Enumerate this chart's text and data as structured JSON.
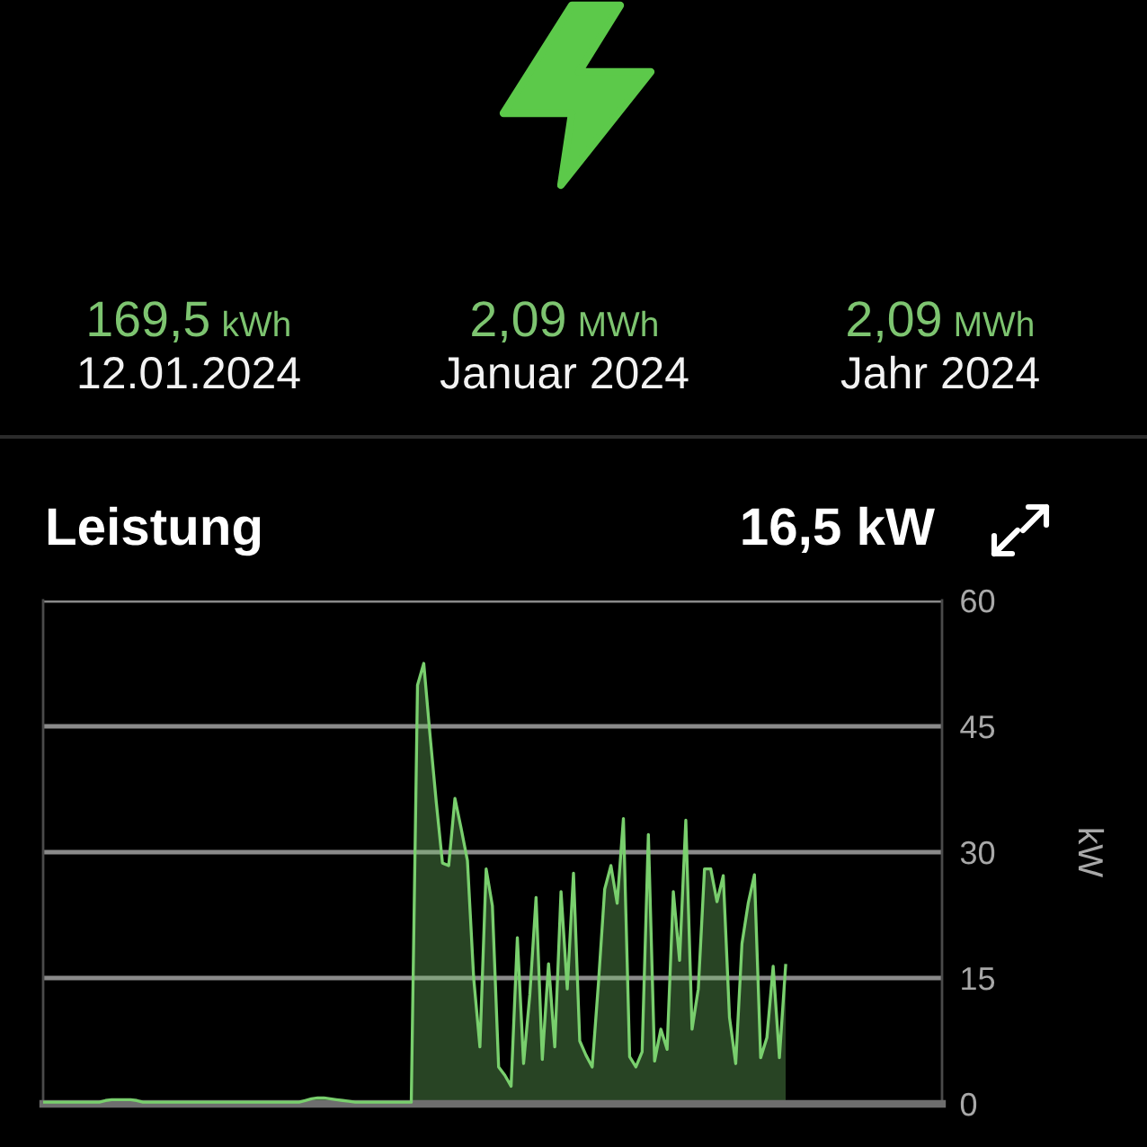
{
  "chart_data": {
    "type": "area",
    "title": "Leistung",
    "ylabel": "kW",
    "annotations": [
      "169,5 kWh",
      "12.01.2024",
      "2,09 MWh",
      "Januar 2024",
      "2,09 MWh",
      "Jahr 2024",
      "16,5 kW"
    ],
    "categories": [
      null,
      null,
      null,
      null,
      null,
      null,
      null,
      null,
      null,
      null,
      null,
      null,
      null,
      null,
      null,
      null,
      null,
      null,
      null,
      null,
      null,
      null,
      null,
      null,
      null,
      null,
      null,
      null,
      null,
      null,
      null,
      null,
      null,
      null,
      null,
      null,
      null,
      null,
      null,
      null,
      null,
      null,
      null,
      null,
      null,
      null,
      null,
      null,
      null,
      null,
      null,
      null,
      null,
      null,
      null,
      null,
      null,
      null,
      null,
      null,
      null,
      null,
      null,
      null,
      null,
      null,
      null,
      null,
      null,
      null,
      null,
      null,
      null,
      null,
      null,
      null,
      null,
      null,
      null,
      null,
      null,
      null,
      null,
      null,
      null,
      null,
      null,
      null,
      null,
      null,
      null,
      null,
      null,
      null,
      null,
      null,
      null,
      null,
      null,
      null,
      null,
      null,
      null,
      null,
      null,
      null,
      null,
      null,
      null,
      null,
      null,
      null,
      null,
      null,
      null,
      null,
      null,
      null,
      null,
      null
    ],
    "series": [
      {
        "color": "#79cf6d",
        "values": [
          0.2,
          0.2,
          0.2,
          0.2,
          0.2,
          0.2,
          0.2,
          0.2,
          0.2,
          0.2,
          0.4,
          0.5,
          0.5,
          0.5,
          0.5,
          0.4,
          0.2,
          0.2,
          0.2,
          0.2,
          0.2,
          0.2,
          0.2,
          0.2,
          0.2,
          0.2,
          0.2,
          0.2,
          0.2,
          0.2,
          0.2,
          0.2,
          0.2,
          0.2,
          0.2,
          0.2,
          0.2,
          0.2,
          0.2,
          0.2,
          0.2,
          0.2,
          0.4,
          0.6,
          0.7,
          0.7,
          0.6,
          0.5,
          0.4,
          0.3,
          0.2,
          0.2,
          0.2,
          0.2,
          0.2,
          0.2,
          0.2,
          0.2,
          0.2,
          0.2,
          49.9,
          52.5,
          44,
          36,
          28.7,
          28.4,
          36.4,
          32.8,
          29,
          15,
          6.8,
          28,
          23.6,
          4.4,
          3.4,
          2.1,
          19.8,
          4.8,
          13,
          24.6,
          5.3,
          16.7,
          6.8,
          25.3,
          13.7,
          27.5,
          7.5,
          5.8,
          4.4,
          14.4,
          25.6,
          28.4,
          23.9,
          34,
          5.6,
          4.4,
          6.2,
          32.1,
          5.1,
          8.9,
          6.5,
          25.3,
          17.1,
          33.8,
          8.9,
          13.7,
          28,
          28,
          24.1,
          27.2,
          10.3,
          4.8,
          19.1,
          23.9,
          27.3,
          5.5,
          7.9,
          16.4,
          5.5,
          16.5
        ]
      }
    ],
    "ylim": [
      0,
      60
    ],
    "yticks": [
      0,
      15,
      30,
      45,
      60
    ],
    "grid": "y",
    "tick_labels": "y"
  }
}
